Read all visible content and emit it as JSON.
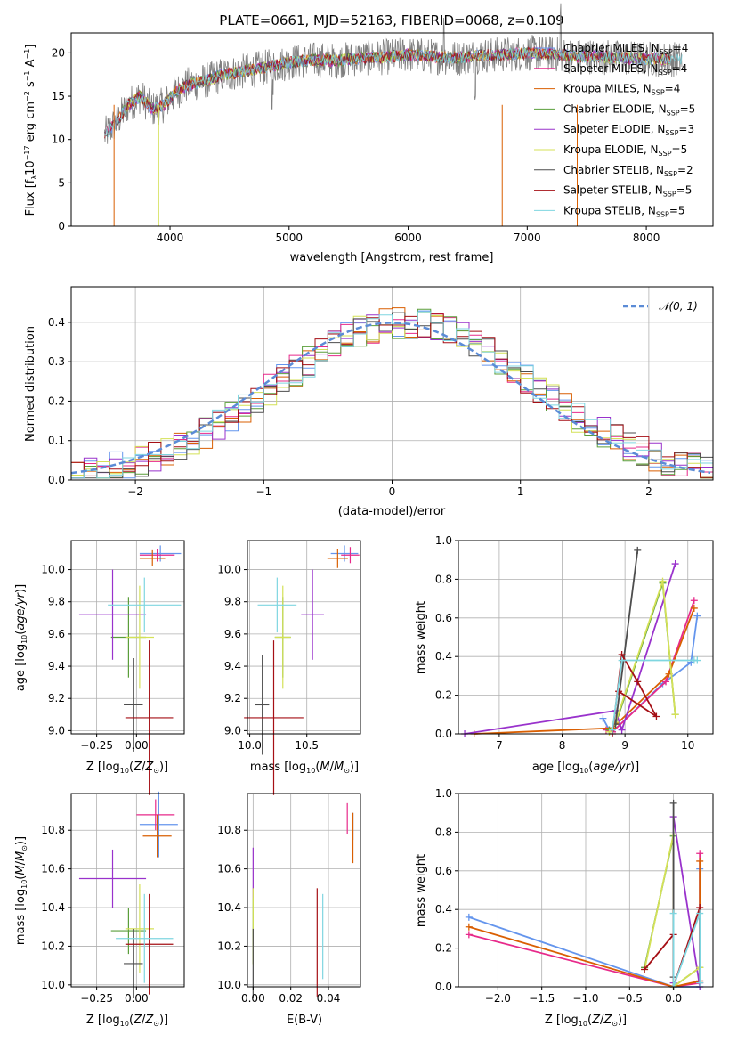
{
  "chart_data": [
    {
      "type": "line",
      "title": "PLATE=0661, MJD=52163, FIBERID=0068, z=0.109",
      "xlabel": "wavelength [Angstrom, rest frame]",
      "ylabel": "Flux [f_λ 10^-17 erg cm^-2 s^-1 A^-1]",
      "xlim": [
        3170,
        8560
      ],
      "ylim": [
        0,
        22.3
      ],
      "xticks": [
        4000,
        5000,
        6000,
        7000,
        8000
      ],
      "yticks": [
        0,
        5,
        10,
        15,
        20
      ],
      "grid": false,
      "legend_position": "top-right",
      "spectrum_profile": {
        "x": [
          3450,
          3550,
          3650,
          3750,
          3850,
          3950,
          4050,
          4150,
          4300,
          4450,
          4600,
          4800,
          5000,
          5200,
          5400,
          5600,
          5800,
          6000,
          6200,
          6400,
          6600,
          6800,
          7000,
          7200,
          7400,
          7600,
          7800,
          8000,
          8200,
          8300
        ],
        "y": [
          10.5,
          12.0,
          14.0,
          15.0,
          13.5,
          14.0,
          15.5,
          16.3,
          16.8,
          17.5,
          17.8,
          18.3,
          18.9,
          19.2,
          19.1,
          19.4,
          19.5,
          19.8,
          19.6,
          19.4,
          19.7,
          19.8,
          20.0,
          19.9,
          19.6,
          19.6,
          19.4,
          19.3,
          19.3,
          19.2
        ]
      },
      "series": [
        {
          "name": "Chabrier MILES, N_SSP=4",
          "label_main": "Chabrier MILES, N",
          "label_sub": "SSP",
          "label_tail": "=4",
          "color": "#6495ed"
        },
        {
          "name": "Salpeter MILES, N_SSP=4",
          "label_main": "Salpeter MILES, N",
          "label_sub": "SSP",
          "label_tail": "=4",
          "color": "#e7298a"
        },
        {
          "name": "Kroupa MILES, N_SSP=4",
          "label_main": "Kroupa MILES, N",
          "label_sub": "SSP",
          "label_tail": "=4",
          "color": "#d95f02"
        },
        {
          "name": "Chabrier ELODIE, N_SSP=5",
          "label_main": "Chabrier ELODIE, N",
          "label_sub": "SSP",
          "label_tail": "=5",
          "color": "#5a9e3a"
        },
        {
          "name": "Salpeter ELODIE, N_SSP=3",
          "label_main": "Salpeter ELODIE, N",
          "label_sub": "SSP",
          "label_tail": "=3",
          "color": "#9932cc"
        },
        {
          "name": "Kroupa ELODIE, N_SSP=5",
          "label_main": "Kroupa ELODIE, N",
          "label_sub": "SSP",
          "label_tail": "=5",
          "color": "#d4e157"
        },
        {
          "name": "Chabrier STELIB, N_SSP=2",
          "label_main": "Chabrier STELIB, N",
          "label_sub": "SSP",
          "label_tail": "=2",
          "color": "#4d4d4d"
        },
        {
          "name": "Salpeter STELIB, N_SSP=5",
          "label_main": "Salpeter STELIB, N",
          "label_sub": "SSP",
          "label_tail": "=5",
          "color": "#a50f15"
        },
        {
          "name": "Kroupa STELIB, N_SSP=5",
          "label_main": "Kroupa STELIB, N",
          "label_sub": "SSP",
          "label_tail": "=5",
          "color": "#7fd6e0"
        }
      ]
    },
    {
      "type": "line",
      "title": "",
      "xlabel": "(data-model)/error",
      "ylabel": "Normed distribution",
      "xlim": [
        -2.5,
        2.5
      ],
      "ylim": [
        0,
        0.49
      ],
      "xticks": [
        -2,
        -1,
        0,
        1,
        2
      ],
      "xtick_labels": [
        "−2",
        "−1",
        "0",
        "1",
        "2"
      ],
      "yticks": [
        0.0,
        0.1,
        0.2,
        0.3,
        0.4
      ],
      "ytick_labels": [
        "0.0",
        "0.1",
        "0.2",
        "0.3",
        "0.4"
      ],
      "grid": true,
      "legend_position": "top-right",
      "legend": "𝒩(0, 1)",
      "normal_curve": {
        "mean": 0,
        "sd": 1,
        "color": "#5b8bd6"
      },
      "histogram_bin_width": 0.1
    },
    {
      "type": "scatter",
      "xlabel": "Z [log10(Z/Z⊙)]",
      "ylabel": "age [log10(age/yr)]",
      "xlim": [
        -0.41,
        0.3
      ],
      "ylim": [
        8.98,
        10.18
      ],
      "xticks": [
        -0.25,
        0.0
      ],
      "xtick_labels": [
        "−0.25",
        "0.00"
      ],
      "yticks": [
        9.0,
        9.2,
        9.4,
        9.6,
        9.8,
        10.0
      ],
      "ytick_labels": [
        "9.0",
        "9.2",
        "9.4",
        "9.6",
        "9.8",
        "10.0"
      ],
      "grid": true,
      "points": [
        {
          "x": 0.15,
          "y": 10.1,
          "xerr": 0.13,
          "yerr": 0.05,
          "color": "#6495ed"
        },
        {
          "x": 0.13,
          "y": 10.09,
          "xerr": 0.11,
          "yerr": 0.04,
          "color": "#e7298a"
        },
        {
          "x": 0.1,
          "y": 10.07,
          "xerr": 0.08,
          "yerr": 0.05,
          "color": "#d95f02"
        },
        {
          "x": -0.05,
          "y": 9.58,
          "xerr": 0.11,
          "yerr": 0.25,
          "color": "#5a9e3a"
        },
        {
          "x": -0.15,
          "y": 9.72,
          "xerr": 0.21,
          "yerr": 0.28,
          "color": "#9932cc"
        },
        {
          "x": 0.02,
          "y": 9.58,
          "xerr": 0.09,
          "yerr": 0.32,
          "color": "#d4e157"
        },
        {
          "x": -0.02,
          "y": 9.16,
          "xerr": 0.06,
          "yerr": 0.29,
          "color": "#4d4d4d"
        },
        {
          "x": 0.08,
          "y": 9.08,
          "xerr": 0.15,
          "yerr": 0.48,
          "color": "#a50f15"
        },
        {
          "x": 0.05,
          "y": 9.78,
          "xerr": 0.23,
          "yerr": 0.17,
          "color": "#7fd6e0"
        }
      ]
    },
    {
      "type": "scatter",
      "xlabel": "mass [log10(M/M⊙)]",
      "xlim": [
        9.98,
        10.97
      ],
      "ylim": [
        8.98,
        10.18
      ],
      "xticks": [
        10.0,
        10.5
      ],
      "xtick_labels": [
        "10.0",
        "10.5"
      ],
      "yticks": [
        9.0,
        9.2,
        9.4,
        9.6,
        9.8,
        10.0
      ],
      "ytick_labels": [
        "9.0",
        "9.2",
        "9.4",
        "9.6",
        "9.8",
        "10.0"
      ],
      "grid": true,
      "points": [
        {
          "x": 10.83,
          "y": 10.1,
          "xerr": 0.12,
          "yerr": 0.05,
          "color": "#6495ed"
        },
        {
          "x": 10.88,
          "y": 10.09,
          "xerr": 0.08,
          "yerr": 0.05,
          "color": "#e7298a"
        },
        {
          "x": 10.77,
          "y": 10.07,
          "xerr": 0.09,
          "yerr": 0.06,
          "color": "#d95f02"
        },
        {
          "x": 10.29,
          "y": 9.58,
          "xerr": 0.07,
          "yerr": 0.25,
          "color": "#5a9e3a"
        },
        {
          "x": 10.55,
          "y": 9.72,
          "xerr": 0.1,
          "yerr": 0.28,
          "color": "#9932cc"
        },
        {
          "x": 10.29,
          "y": 9.58,
          "xerr": 0.07,
          "yerr": 0.32,
          "color": "#d4e157"
        },
        {
          "x": 10.11,
          "y": 9.16,
          "xerr": 0.06,
          "yerr": 0.31,
          "color": "#4d4d4d"
        },
        {
          "x": 10.21,
          "y": 9.08,
          "xerr": 0.26,
          "yerr": 0.48,
          "color": "#a50f15"
        },
        {
          "x": 10.24,
          "y": 9.78,
          "xerr": 0.17,
          "yerr": 0.17,
          "color": "#7fd6e0"
        }
      ]
    },
    {
      "type": "line",
      "xlabel": "age [log10(age/yr)]",
      "ylabel": "mass weight",
      "xlim": [
        6.35,
        10.4
      ],
      "ylim": [
        0,
        1.0
      ],
      "xticks": [
        7,
        8,
        9,
        10
      ],
      "yticks": [
        0.0,
        0.2,
        0.4,
        0.6,
        0.8,
        1.0
      ],
      "ytick_labels": [
        "0.0",
        "0.2",
        "0.4",
        "0.6",
        "0.8",
        "1.0"
      ],
      "grid": true,
      "series": [
        {
          "color": "#6495ed",
          "x": [
            8.65,
            8.75,
            8.8,
            9.6,
            10.05,
            10.15
          ],
          "y": [
            0.08,
            0.02,
            0.01,
            0.26,
            0.37,
            0.61
          ]
        },
        {
          "color": "#e7298a",
          "x": [
            8.7,
            8.8,
            9.65,
            10.1
          ],
          "y": [
            0.02,
            0.01,
            0.27,
            0.69
          ]
        },
        {
          "color": "#d95f02",
          "x": [
            6.6,
            8.8,
            9.7,
            10.1
          ],
          "y": [
            0.0,
            0.03,
            0.31,
            0.65
          ]
        },
        {
          "color": "#5a9e3a",
          "x": [
            8.75,
            8.85,
            9.6,
            9.8
          ],
          "y": [
            0.02,
            0.05,
            0.78,
            0.1
          ]
        },
        {
          "color": "#9932cc",
          "x": [
            6.45,
            8.85,
            8.95,
            9.8
          ],
          "y": [
            0.0,
            0.12,
            0.02,
            0.88
          ]
        },
        {
          "color": "#d4e157",
          "x": [
            8.75,
            8.85,
            9.6,
            9.8
          ],
          "y": [
            0.01,
            0.06,
            0.79,
            0.1
          ]
        },
        {
          "color": "#4d4d4d",
          "x": [
            8.85,
            9.2
          ],
          "y": [
            0.05,
            0.95
          ]
        },
        {
          "color": "#a50f15",
          "x": [
            8.8,
            8.95,
            9.2,
            9.5,
            8.9
          ],
          "y": [
            0.0,
            0.41,
            0.27,
            0.09,
            0.22
          ]
        },
        {
          "color": "#7fd6e0",
          "x": [
            8.8,
            8.95,
            10.1,
            10.15
          ],
          "y": [
            0.02,
            0.38,
            0.38,
            0.38
          ]
        }
      ]
    },
    {
      "type": "scatter",
      "xlabel": "Z [log10(Z/Z⊙)]",
      "ylabel": "mass [log10(M/M⊙)]",
      "xlim": [
        -0.41,
        0.3
      ],
      "ylim": [
        9.99,
        10.99
      ],
      "xticks": [
        -0.25,
        0.0
      ],
      "xtick_labels": [
        "−0.25",
        "0.00"
      ],
      "yticks": [
        10.0,
        10.2,
        10.4,
        10.6,
        10.8
      ],
      "ytick_labels": [
        "10.0",
        "10.2",
        "10.4",
        "10.6",
        "10.8"
      ],
      "grid": true,
      "points": [
        {
          "x": 0.14,
          "y": 10.83,
          "xerr": 0.12,
          "yerr": 0.17,
          "color": "#6495ed"
        },
        {
          "x": 0.12,
          "y": 10.88,
          "xerr": 0.12,
          "yerr": 0.08,
          "color": "#e7298a"
        },
        {
          "x": 0.13,
          "y": 10.77,
          "xerr": 0.09,
          "yerr": 0.11,
          "color": "#d95f02"
        },
        {
          "x": -0.05,
          "y": 10.28,
          "xerr": 0.11,
          "yerr": 0.12,
          "color": "#5a9e3a"
        },
        {
          "x": -0.15,
          "y": 10.55,
          "xerr": 0.21,
          "yerr": 0.15,
          "color": "#9932cc"
        },
        {
          "x": 0.02,
          "y": 10.29,
          "xerr": 0.09,
          "yerr": 0.23,
          "color": "#d4e157"
        },
        {
          "x": -0.02,
          "y": 10.11,
          "xerr": 0.06,
          "yerr": 0.18,
          "color": "#4d4d4d"
        },
        {
          "x": 0.08,
          "y": 10.21,
          "xerr": 0.15,
          "yerr": 0.26,
          "color": "#a50f15"
        },
        {
          "x": 0.05,
          "y": 10.24,
          "xerr": 0.18,
          "yerr": 0.23,
          "color": "#7fd6e0"
        }
      ]
    },
    {
      "type": "scatter",
      "xlabel": "E(B-V)",
      "xlim": [
        -0.003,
        0.057
      ],
      "ylim": [
        9.99,
        10.99
      ],
      "xticks": [
        0.0,
        0.02,
        0.04
      ],
      "xtick_labels": [
        "0.00",
        "0.02",
        "0.04"
      ],
      "yticks": [
        10.0,
        10.2,
        10.4,
        10.6,
        10.8
      ],
      "ytick_labels": [
        "10.0",
        "10.2",
        "10.4",
        "10.6",
        "10.8"
      ],
      "grid": true,
      "points": [
        {
          "x": 0.053,
          "y": 10.82,
          "yerr": 0.07,
          "color": "#6495ed"
        },
        {
          "x": 0.05,
          "y": 10.86,
          "yerr": 0.08,
          "color": "#e7298a"
        },
        {
          "x": 0.053,
          "y": 10.76,
          "yerr": 0.13,
          "color": "#d95f02"
        },
        {
          "x": 0.0,
          "y": 10.28,
          "yerr": 0.17,
          "color": "#5a9e3a"
        },
        {
          "x": 0.0,
          "y": 10.58,
          "yerr": 0.13,
          "color": "#9932cc"
        },
        {
          "x": 0.0,
          "y": 10.3,
          "yerr": 0.2,
          "color": "#d4e157"
        },
        {
          "x": 0.0,
          "y": 10.11,
          "yerr": 0.18,
          "color": "#4d4d4d"
        },
        {
          "x": 0.034,
          "y": 10.22,
          "yerr": 0.28,
          "color": "#a50f15"
        },
        {
          "x": 0.037,
          "y": 10.25,
          "yerr": 0.22,
          "color": "#7fd6e0"
        }
      ]
    },
    {
      "type": "line",
      "xlabel": "Z [log10(Z/Z⊙)]",
      "ylabel": "mass weight",
      "xlim": [
        -2.45,
        0.45
      ],
      "ylim": [
        0,
        1.0
      ],
      "xticks": [
        -2.0,
        -1.5,
        -1.0,
        -0.5,
        0.0
      ],
      "xtick_labels": [
        "−2.0",
        "−1.5",
        "−1.0",
        "−0.5",
        "0.0"
      ],
      "yticks": [
        0.0,
        0.2,
        0.4,
        0.6,
        0.8,
        1.0
      ],
      "ytick_labels": [
        "0.0",
        "0.2",
        "0.4",
        "0.6",
        "0.8",
        "1.0"
      ],
      "grid": true,
      "series": [
        {
          "color": "#6495ed",
          "x": [
            -2.33,
            0.0,
            0.3,
            0.3
          ],
          "y": [
            0.36,
            0.0,
            0.0,
            0.61
          ]
        },
        {
          "color": "#e7298a",
          "x": [
            -2.33,
            0.0,
            0.3,
            0.3
          ],
          "y": [
            0.27,
            0.0,
            0.02,
            0.69
          ]
        },
        {
          "color": "#d95f02",
          "x": [
            -2.33,
            0.0,
            0.3,
            0.3
          ],
          "y": [
            0.31,
            0.0,
            0.03,
            0.65
          ]
        },
        {
          "color": "#5a9e3a",
          "x": [
            -0.33,
            0.0,
            0.0,
            0.3
          ],
          "y": [
            0.1,
            0.78,
            0.0,
            0.1
          ]
        },
        {
          "color": "#9932cc",
          "x": [
            0.0,
            0.0,
            0.3
          ],
          "y": [
            0.02,
            0.88,
            0.0
          ]
        },
        {
          "color": "#d4e157",
          "x": [
            -0.33,
            0.0,
            0.0,
            0.3
          ],
          "y": [
            0.09,
            0.79,
            0.0,
            0.1
          ]
        },
        {
          "color": "#4d4d4d",
          "x": [
            0.0,
            0.0
          ],
          "y": [
            0.05,
            0.95
          ]
        },
        {
          "color": "#a50f15",
          "x": [
            -0.33,
            0.0,
            0.0,
            0.3,
            0.3
          ],
          "y": [
            0.09,
            0.27,
            0.0,
            0.41,
            0.03
          ]
        },
        {
          "color": "#7fd6e0",
          "x": [
            0.0,
            0.0,
            0.3,
            0.3
          ],
          "y": [
            0.38,
            0.0,
            0.38,
            0.02
          ]
        }
      ]
    }
  ]
}
